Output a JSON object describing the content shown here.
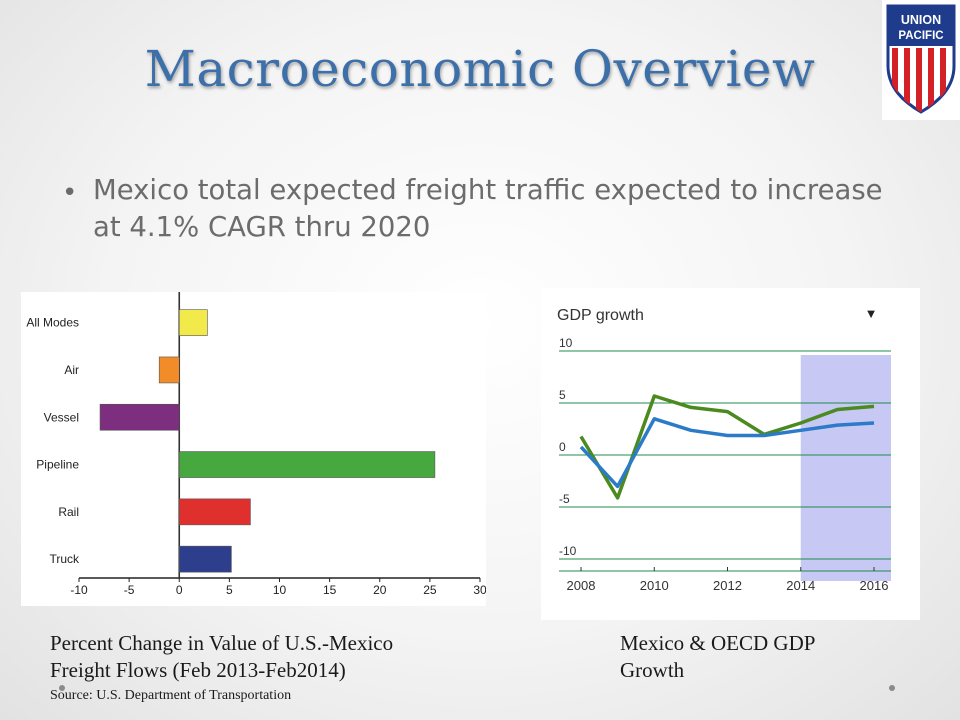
{
  "slide": {
    "title": "Macroeconomic Overview",
    "bullet": "Mexico total expected freight traffic expected to increase at 4.1% CAGR thru 2020",
    "logo": {
      "line1": "UNION",
      "line2": "PACIFIC",
      "colors": {
        "blue": "#1f3b8c",
        "red": "#d42027"
      }
    },
    "caption_left_line1": "Percent Change in Value of U.S.-Mexico",
    "caption_left_line2": "Freight Flows (Feb 2013-Feb2014)",
    "source": "Source: U.S. Department of Transportation",
    "caption_right_line1": "Mexico  & OECD  GDP",
    "caption_right_line2": "Growth"
  },
  "chart_data": [
    {
      "type": "bar",
      "orientation": "horizontal",
      "categories": [
        "All Modes",
        "Air",
        "Vessel",
        "Pipeline",
        "Rail",
        "Truck"
      ],
      "values": [
        2.8,
        -2.0,
        -7.9,
        25.5,
        7.1,
        5.2
      ],
      "colors": [
        "#f2ea4a",
        "#f28c28",
        "#7d2e7e",
        "#48a840",
        "#e0302d",
        "#2d3e8c"
      ],
      "xlim": [
        -10,
        30
      ],
      "xticks": [
        "-10",
        "-5",
        "0",
        "5",
        "10",
        "15",
        "20",
        "25",
        "30"
      ],
      "grid": false
    },
    {
      "type": "line",
      "title": "GDP growth",
      "menu_glyph": "▼",
      "x": [
        2008,
        2009,
        2010,
        2011,
        2012,
        2013,
        2014,
        2015,
        2016
      ],
      "xticks": [
        "2008",
        "2010",
        "2012",
        "2014",
        "2016"
      ],
      "ylim": [
        -10,
        10
      ],
      "yticks": [
        "10",
        "5",
        "0",
        "-5",
        "-10"
      ],
      "grid": true,
      "shaded_from": 2014,
      "colors": {
        "shade": "#c8c8f4",
        "grid": "#1e8c4c"
      },
      "series": [
        {
          "values": [
            1.2,
            -4.7,
            5.1,
            4.0,
            3.6,
            1.4,
            2.5,
            3.8,
            4.1
          ],
          "color": "#4a8a1e"
        },
        {
          "values": [
            0.2,
            -3.6,
            2.9,
            1.8,
            1.3,
            1.3,
            1.8,
            2.3,
            2.5
          ],
          "color": "#2b7bc8"
        }
      ]
    }
  ]
}
